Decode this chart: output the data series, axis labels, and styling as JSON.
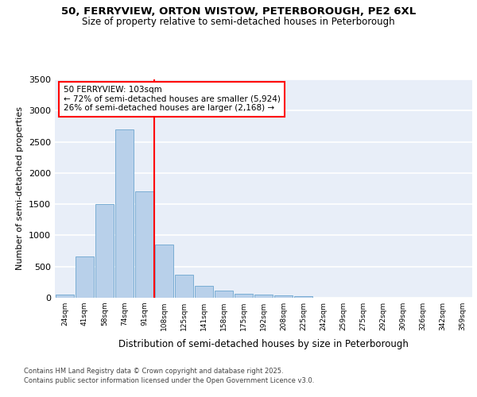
{
  "title1": "50, FERRYVIEW, ORTON WISTOW, PETERBOROUGH, PE2 6XL",
  "title2": "Size of property relative to semi-detached houses in Peterborough",
  "xlabel": "Distribution of semi-detached houses by size in Peterborough",
  "ylabel": "Number of semi-detached properties",
  "categories": [
    "24sqm",
    "41sqm",
    "58sqm",
    "74sqm",
    "91sqm",
    "108sqm",
    "125sqm",
    "141sqm",
    "158sqm",
    "175sqm",
    "192sqm",
    "208sqm",
    "225sqm",
    "242sqm",
    "259sqm",
    "275sqm",
    "292sqm",
    "309sqm",
    "326sqm",
    "342sqm",
    "359sqm"
  ],
  "values": [
    55,
    660,
    1500,
    2700,
    1700,
    850,
    375,
    190,
    120,
    65,
    45,
    35,
    25,
    0,
    0,
    0,
    0,
    0,
    0,
    0,
    0
  ],
  "bar_color": "#b8d0ea",
  "bar_edge_color": "#7aadd4",
  "bg_color": "#e8eef8",
  "grid_color": "#ffffff",
  "annotation_line1": "50 FERRYVIEW: 103sqm",
  "annotation_line2": "← 72% of semi-detached houses are smaller (5,924)",
  "annotation_line3": "26% of semi-detached houses are larger (2,168) →",
  "ylim": [
    0,
    3500
  ],
  "yticks": [
    0,
    500,
    1000,
    1500,
    2000,
    2500,
    3000,
    3500
  ],
  "red_line_x": 4.5,
  "footer1": "Contains HM Land Registry data © Crown copyright and database right 2025.",
  "footer2": "Contains public sector information licensed under the Open Government Licence v3.0."
}
